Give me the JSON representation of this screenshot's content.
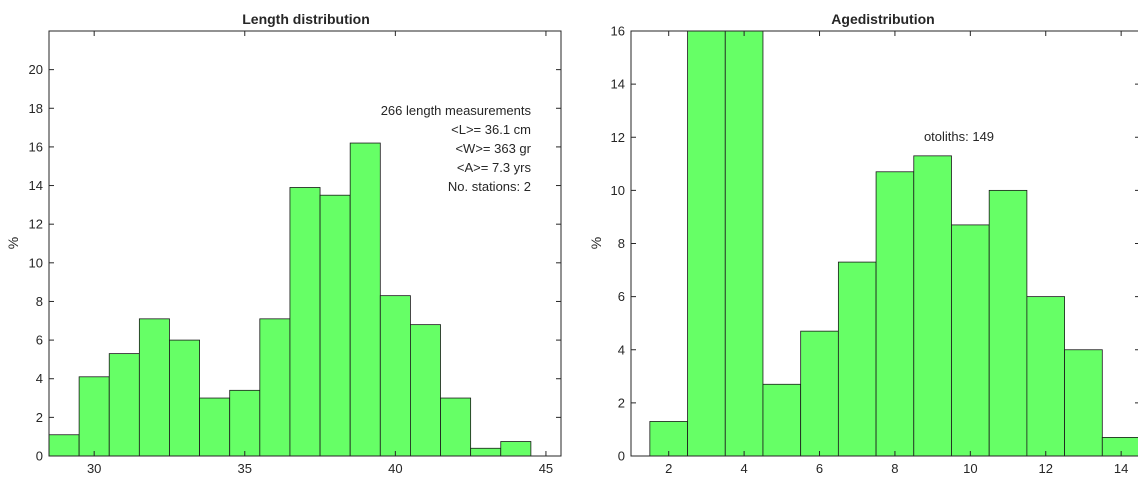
{
  "colors": {
    "bar_fill": "#66ff66",
    "bar_edge": "#1a1a1a",
    "axis": "#262626"
  },
  "chart_data": [
    {
      "type": "bar",
      "title": "Length distribution",
      "xlabel": "",
      "ylabel": "%",
      "xlim": [
        28.5,
        45.5
      ],
      "ylim": [
        0,
        22
      ],
      "bin_width": 1,
      "x": [
        29,
        30,
        31,
        32,
        33,
        34,
        35,
        36,
        37,
        38,
        39,
        40,
        41,
        42,
        43
      ],
      "values": [
        1.1,
        4.1,
        5.3,
        7.1,
        6.0,
        3.0,
        3.4,
        7.1,
        13.9,
        13.5,
        16.2,
        8.3,
        6.8,
        3.0,
        0.4
      ],
      "extra_bar": {
        "x": 44,
        "value": 0.75
      },
      "xticks": [
        30,
        35,
        40,
        45
      ],
      "yticks": [
        0,
        2,
        4,
        6,
        8,
        10,
        12,
        14,
        16,
        18,
        20
      ],
      "grid": false,
      "annotations": [
        "266 length measurements",
        "<L>= 36.1 cm",
        "<W>= 363 gr",
        "<A>= 7.3 yrs",
        "No. stations: 2"
      ]
    },
    {
      "type": "bar",
      "title": "Agedistribution",
      "xlabel": "",
      "ylabel": "%",
      "xlim": [
        1,
        14.5
      ],
      "ylim": [
        0,
        16
      ],
      "bin_width": 1,
      "x": [
        2,
        3,
        4,
        5,
        6,
        7,
        8,
        9,
        10,
        11,
        12,
        13,
        14
      ],
      "values": [
        1.3,
        16,
        16,
        2.7,
        4.7,
        7.3,
        10.7,
        11.3,
        8.7,
        10.0,
        6.0,
        4.0,
        0.7
      ],
      "xticks": [
        2,
        4,
        6,
        8,
        10,
        12,
        14
      ],
      "yticks": [
        0,
        2,
        4,
        6,
        8,
        10,
        12,
        14,
        16
      ],
      "grid": false,
      "annotations": [
        "otoliths: 149"
      ]
    }
  ]
}
